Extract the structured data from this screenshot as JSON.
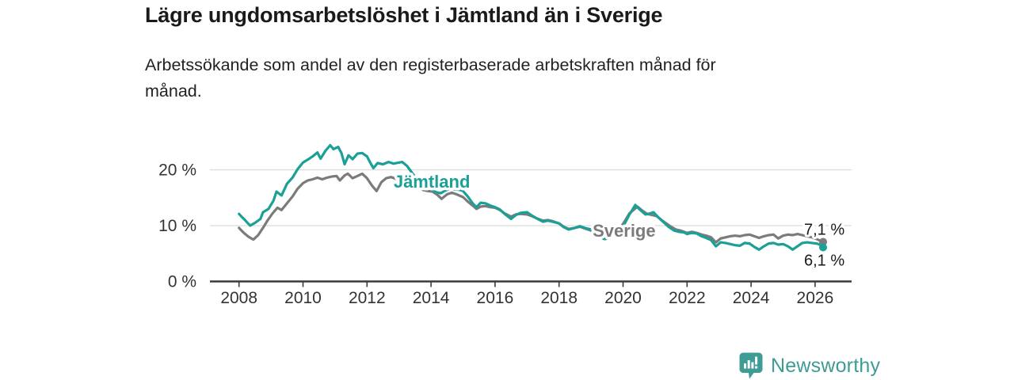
{
  "header": {
    "title": "Lägre ungdomsarbetslöshet i Jämtland än i Sverige",
    "subtitle_lines": [
      "Arbetssökande som andel av den registerbaserade arbetskraften månad för",
      "månad."
    ]
  },
  "footer": {
    "brand": "Newsworthy",
    "brand_color": "#3E9C95",
    "logo_icon": "bar-chart-speech-bubble-icon"
  },
  "chart_data": {
    "type": "line",
    "title": "Lägre ungdomsarbetslöshet i Jämtland än i Sverige",
    "subtitle": "Arbetssökande som andel av den registerbaserade arbetskraften månad för månad.",
    "xlabel": "",
    "ylabel": "",
    "unit": "%",
    "grid": true,
    "xlim": [
      2007.1,
      2027.1
    ],
    "ylim": [
      0,
      26
    ],
    "x_ticks": [
      2008,
      2010,
      2012,
      2014,
      2016,
      2018,
      2020,
      2022,
      2024,
      2026
    ],
    "y_ticks": [
      {
        "value": 0,
        "label": "0 %"
      },
      {
        "value": 10,
        "label": "10 %"
      },
      {
        "value": 20,
        "label": "20 %"
      }
    ],
    "colors": {
      "jamtland": "#1AA096",
      "sverige": "#7B7B7B",
      "grid": "#dadada",
      "axis": "#3a3a3a",
      "text": "#333333"
    },
    "series": [
      {
        "name": "Sverige",
        "color": "#7B7B7B",
        "end_label": "7,1 %",
        "end_label_position": "above",
        "name_label": {
          "x": 2019.05,
          "y": 8.0,
          "anchor": "start"
        },
        "points": [
          [
            2008.0,
            9.6
          ],
          [
            2008.08,
            9.1
          ],
          [
            2008.17,
            8.6
          ],
          [
            2008.3,
            8.0
          ],
          [
            2008.45,
            7.5
          ],
          [
            2008.6,
            8.3
          ],
          [
            2008.75,
            9.6
          ],
          [
            2008.9,
            11.0
          ],
          [
            2009.05,
            12.2
          ],
          [
            2009.2,
            13.2
          ],
          [
            2009.33,
            12.8
          ],
          [
            2009.5,
            14.0
          ],
          [
            2009.67,
            15.2
          ],
          [
            2009.83,
            16.6
          ],
          [
            2010.0,
            17.6
          ],
          [
            2010.15,
            18.1
          ],
          [
            2010.3,
            18.3
          ],
          [
            2010.45,
            18.6
          ],
          [
            2010.6,
            18.3
          ],
          [
            2010.75,
            18.6
          ],
          [
            2010.9,
            18.8
          ],
          [
            2011.05,
            18.9
          ],
          [
            2011.15,
            18.1
          ],
          [
            2011.3,
            19.0
          ],
          [
            2011.4,
            19.3
          ],
          [
            2011.55,
            18.5
          ],
          [
            2011.7,
            18.9
          ],
          [
            2011.85,
            19.3
          ],
          [
            2012.0,
            18.5
          ],
          [
            2012.15,
            17.2
          ],
          [
            2012.3,
            16.2
          ],
          [
            2012.45,
            17.8
          ],
          [
            2012.6,
            18.5
          ],
          [
            2012.75,
            18.7
          ],
          [
            2012.9,
            18.4
          ],
          [
            2013.0,
            18.6
          ],
          [
            2013.15,
            18.5
          ],
          [
            2013.3,
            18.1
          ],
          [
            2013.45,
            17.4
          ],
          [
            2013.6,
            16.8
          ],
          [
            2013.75,
            16.4
          ],
          [
            2013.9,
            16.2
          ],
          [
            2014.05,
            16.1
          ],
          [
            2014.2,
            15.5
          ],
          [
            2014.33,
            14.8
          ],
          [
            2014.5,
            15.6
          ],
          [
            2014.65,
            15.9
          ],
          [
            2014.8,
            15.6
          ],
          [
            2015.0,
            15.1
          ],
          [
            2015.15,
            14.3
          ],
          [
            2015.3,
            13.6
          ],
          [
            2015.42,
            13.0
          ],
          [
            2015.55,
            13.4
          ],
          [
            2015.7,
            13.5
          ],
          [
            2015.85,
            13.3
          ],
          [
            2016.0,
            13.2
          ],
          [
            2016.15,
            12.8
          ],
          [
            2016.3,
            12.2
          ],
          [
            2016.5,
            11.6
          ],
          [
            2016.65,
            12.0
          ],
          [
            2016.8,
            12.1
          ],
          [
            2017.0,
            12.0
          ],
          [
            2017.15,
            11.7
          ],
          [
            2017.3,
            11.3
          ],
          [
            2017.5,
            10.9
          ],
          [
            2017.65,
            11.0
          ],
          [
            2017.8,
            10.8
          ],
          [
            2018.0,
            10.4
          ],
          [
            2018.15,
            9.8
          ],
          [
            2018.3,
            9.4
          ],
          [
            2018.5,
            9.6
          ],
          [
            2018.65,
            9.8
          ],
          [
            2018.8,
            9.5
          ],
          [
            2019.0,
            9.1
          ],
          [
            2019.15,
            8.5
          ],
          [
            2019.3,
            7.9
          ],
          [
            2019.45,
            7.6
          ],
          [
            2019.6,
            8.0
          ],
          [
            2019.8,
            8.8
          ],
          [
            2020.0,
            10.3
          ],
          [
            2020.2,
            12.2
          ],
          [
            2020.45,
            13.4
          ],
          [
            2020.6,
            12.7
          ],
          [
            2020.75,
            12.1
          ],
          [
            2020.9,
            11.9
          ],
          [
            2021.05,
            11.7
          ],
          [
            2021.2,
            11.0
          ],
          [
            2021.35,
            10.4
          ],
          [
            2021.5,
            9.8
          ],
          [
            2021.65,
            9.3
          ],
          [
            2021.8,
            9.1
          ],
          [
            2022.0,
            8.7
          ],
          [
            2022.15,
            8.9
          ],
          [
            2022.3,
            8.7
          ],
          [
            2022.45,
            8.4
          ],
          [
            2022.6,
            8.2
          ],
          [
            2022.75,
            7.9
          ],
          [
            2022.9,
            7.0
          ],
          [
            2023.05,
            7.7
          ],
          [
            2023.2,
            7.9
          ],
          [
            2023.35,
            8.1
          ],
          [
            2023.5,
            8.2
          ],
          [
            2023.65,
            8.1
          ],
          [
            2023.8,
            8.3
          ],
          [
            2023.95,
            8.4
          ],
          [
            2024.1,
            8.1
          ],
          [
            2024.25,
            7.8
          ],
          [
            2024.4,
            8.1
          ],
          [
            2024.55,
            8.3
          ],
          [
            2024.7,
            8.4
          ],
          [
            2024.85,
            7.7
          ],
          [
            2025.0,
            8.2
          ],
          [
            2025.15,
            8.4
          ],
          [
            2025.3,
            8.3
          ],
          [
            2025.45,
            8.5
          ],
          [
            2025.6,
            8.3
          ],
          [
            2025.75,
            8.1
          ],
          [
            2025.9,
            7.9
          ],
          [
            2026.05,
            7.6
          ],
          [
            2026.15,
            7.3
          ],
          [
            2026.25,
            7.1
          ]
        ]
      },
      {
        "name": "Jämtland",
        "color": "#1AA096",
        "end_label": "6,1 %",
        "end_label_position": "below",
        "name_label": {
          "x": 2012.83,
          "y": 16.8,
          "anchor": "start"
        },
        "points": [
          [
            2008.0,
            12.1
          ],
          [
            2008.08,
            11.6
          ],
          [
            2008.17,
            11.1
          ],
          [
            2008.25,
            10.6
          ],
          [
            2008.35,
            10.0
          ],
          [
            2008.5,
            10.5
          ],
          [
            2008.67,
            11.2
          ],
          [
            2008.75,
            12.4
          ],
          [
            2008.92,
            13.0
          ],
          [
            2009.08,
            14.5
          ],
          [
            2009.17,
            16.1
          ],
          [
            2009.33,
            15.4
          ],
          [
            2009.5,
            17.5
          ],
          [
            2009.67,
            18.6
          ],
          [
            2009.83,
            20.1
          ],
          [
            2010.0,
            21.3
          ],
          [
            2010.17,
            21.9
          ],
          [
            2010.3,
            22.4
          ],
          [
            2010.45,
            23.1
          ],
          [
            2010.55,
            22.0
          ],
          [
            2010.7,
            23.4
          ],
          [
            2010.85,
            24.4
          ],
          [
            2010.95,
            23.7
          ],
          [
            2011.1,
            24.1
          ],
          [
            2011.2,
            23.0
          ],
          [
            2011.3,
            21.0
          ],
          [
            2011.42,
            22.6
          ],
          [
            2011.55,
            21.9
          ],
          [
            2011.7,
            22.9
          ],
          [
            2011.85,
            23.0
          ],
          [
            2012.0,
            22.4
          ],
          [
            2012.1,
            21.3
          ],
          [
            2012.2,
            20.3
          ],
          [
            2012.33,
            21.2
          ],
          [
            2012.5,
            21.0
          ],
          [
            2012.67,
            21.4
          ],
          [
            2012.83,
            21.1
          ],
          [
            2013.0,
            21.3
          ],
          [
            2013.1,
            21.4
          ],
          [
            2013.25,
            20.7
          ],
          [
            2013.4,
            19.5
          ],
          [
            2013.55,
            18.4
          ],
          [
            2013.7,
            17.6
          ],
          [
            2013.85,
            17.0
          ],
          [
            2014.0,
            16.6
          ],
          [
            2014.15,
            16.0
          ],
          [
            2014.3,
            15.8
          ],
          [
            2014.45,
            16.3
          ],
          [
            2014.6,
            16.6
          ],
          [
            2014.75,
            16.5
          ],
          [
            2014.9,
            16.4
          ],
          [
            2015.0,
            16.2
          ],
          [
            2015.15,
            15.2
          ],
          [
            2015.3,
            14.0
          ],
          [
            2015.42,
            13.3
          ],
          [
            2015.55,
            14.1
          ],
          [
            2015.7,
            14.0
          ],
          [
            2015.85,
            13.6
          ],
          [
            2016.0,
            13.3
          ],
          [
            2016.15,
            12.9
          ],
          [
            2016.3,
            12.1
          ],
          [
            2016.5,
            11.2
          ],
          [
            2016.65,
            11.9
          ],
          [
            2016.8,
            12.3
          ],
          [
            2017.0,
            12.4
          ],
          [
            2017.15,
            11.8
          ],
          [
            2017.3,
            11.3
          ],
          [
            2017.5,
            10.7
          ],
          [
            2017.65,
            10.9
          ],
          [
            2017.8,
            10.7
          ],
          [
            2018.0,
            10.4
          ],
          [
            2018.15,
            9.7
          ],
          [
            2018.3,
            9.3
          ],
          [
            2018.5,
            9.6
          ],
          [
            2018.65,
            9.9
          ],
          [
            2018.8,
            9.6
          ],
          [
            2019.0,
            9.3
          ],
          [
            2019.15,
            8.6
          ],
          [
            2019.3,
            7.9
          ],
          [
            2019.42,
            7.6
          ],
          [
            2019.6,
            8.0
          ],
          [
            2019.8,
            8.7
          ],
          [
            2020.0,
            9.8
          ],
          [
            2020.2,
            12.0
          ],
          [
            2020.38,
            13.7
          ],
          [
            2020.5,
            13.0
          ],
          [
            2020.7,
            12.0
          ],
          [
            2020.85,
            12.2
          ],
          [
            2020.95,
            12.4
          ],
          [
            2021.1,
            11.5
          ],
          [
            2021.25,
            10.7
          ],
          [
            2021.42,
            9.8
          ],
          [
            2021.6,
            9.1
          ],
          [
            2021.75,
            8.9
          ],
          [
            2021.9,
            8.8
          ],
          [
            2022.0,
            8.5
          ],
          [
            2022.15,
            8.7
          ],
          [
            2022.3,
            8.6
          ],
          [
            2022.45,
            8.1
          ],
          [
            2022.6,
            7.8
          ],
          [
            2022.75,
            7.4
          ],
          [
            2022.9,
            6.3
          ],
          [
            2023.05,
            7.0
          ],
          [
            2023.2,
            6.9
          ],
          [
            2023.35,
            6.7
          ],
          [
            2023.5,
            6.5
          ],
          [
            2023.65,
            6.4
          ],
          [
            2023.8,
            6.9
          ],
          [
            2023.95,
            6.8
          ],
          [
            2024.1,
            6.2
          ],
          [
            2024.25,
            5.7
          ],
          [
            2024.4,
            6.3
          ],
          [
            2024.55,
            6.8
          ],
          [
            2024.7,
            6.9
          ],
          [
            2024.85,
            6.6
          ],
          [
            2025.0,
            6.7
          ],
          [
            2025.15,
            6.3
          ],
          [
            2025.3,
            5.7
          ],
          [
            2025.45,
            6.3
          ],
          [
            2025.6,
            6.9
          ],
          [
            2025.75,
            7.0
          ],
          [
            2025.9,
            6.9
          ],
          [
            2026.05,
            6.8
          ],
          [
            2026.15,
            6.6
          ],
          [
            2026.25,
            6.1
          ]
        ]
      }
    ],
    "end_values": {
      "Sverige": "7,1 %",
      "Jämtland": "6,1 %"
    }
  }
}
